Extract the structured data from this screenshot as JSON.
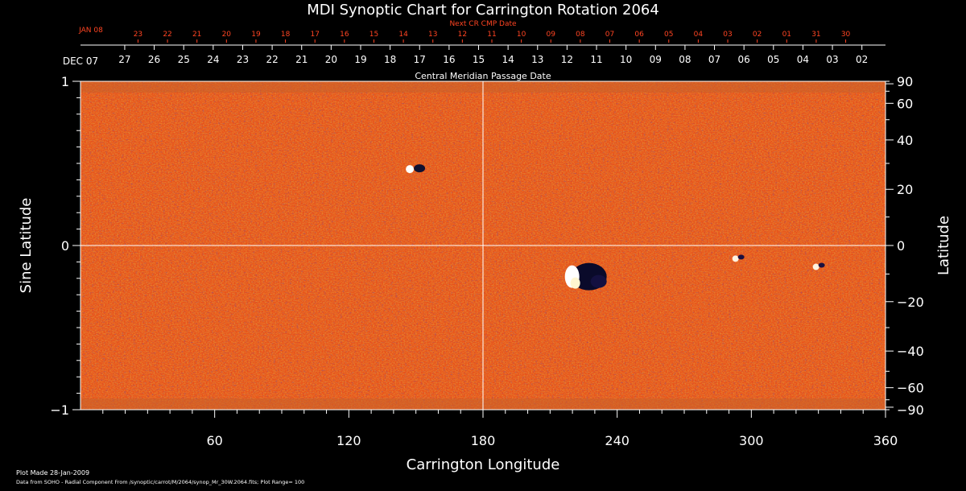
{
  "chart_data": {
    "type": "heatmap",
    "title": "MDI Synoptic Chart for Carrington Rotation 2064",
    "xlabel": "Carrington Longitude",
    "ylabel_left": "Sine Latitude",
    "ylabel_right": "Latitude",
    "top_axis_label": "Central Meridian Passage Date",
    "next_axis_label": "Next CR CMP Date",
    "xlim": [
      0,
      360
    ],
    "ylim": [
      -1,
      1
    ],
    "x_ticks": [
      60,
      120,
      180,
      240,
      300,
      360
    ],
    "y_ticks_left": [
      {
        "v": 1,
        "t": "1"
      },
      {
        "v": 0,
        "t": "0"
      },
      {
        "v": -1,
        "t": "−1"
      }
    ],
    "y_ticks_right": [
      90,
      60,
      40,
      20,
      0,
      -20,
      -40,
      -60,
      -90
    ],
    "cmp_dates": {
      "start_label": "DEC 07",
      "days": [
        "27",
        "26",
        "25",
        "24",
        "23",
        "22",
        "21",
        "20",
        "19",
        "18",
        "17",
        "16",
        "15",
        "14",
        "13",
        "12",
        "11",
        "10",
        "09",
        "08",
        "07",
        "06",
        "05",
        "04",
        "03",
        "02"
      ]
    },
    "next_cmp_dates": {
      "start_label": "JAN 08",
      "days": [
        "23",
        "22",
        "21",
        "20",
        "19",
        "18",
        "17",
        "16",
        "15",
        "14",
        "13",
        "12",
        "11",
        "10",
        "09",
        "08",
        "07",
        "06",
        "05",
        "04",
        "03",
        "02",
        "01",
        "31",
        "30"
      ]
    },
    "features": [
      {
        "name": "active-region-large",
        "lon": 222,
        "sinlat": -0.17
      },
      {
        "name": "active-region-north",
        "lon": 148,
        "sinlat": 0.47
      },
      {
        "name": "small-region-east",
        "lon": 294,
        "sinlat": -0.08
      },
      {
        "name": "small-region-far-east",
        "lon": 330,
        "sinlat": -0.13
      }
    ],
    "grid": true,
    "colormap": "red-orange-yellow with dark blue negative polarity",
    "colors": {
      "background": "#000000",
      "field": "#e8501a",
      "axis": "#ffffff",
      "secondary_axis": "#ff4422"
    }
  },
  "footer": {
    "plot_made": "Plot Made 28-Jan-2009",
    "data_from": "Data from SOHO - Radial Component From /synoptic/carrot/M/2064/synop_Mr_30W.2064.fits; Plot Range= 100"
  }
}
